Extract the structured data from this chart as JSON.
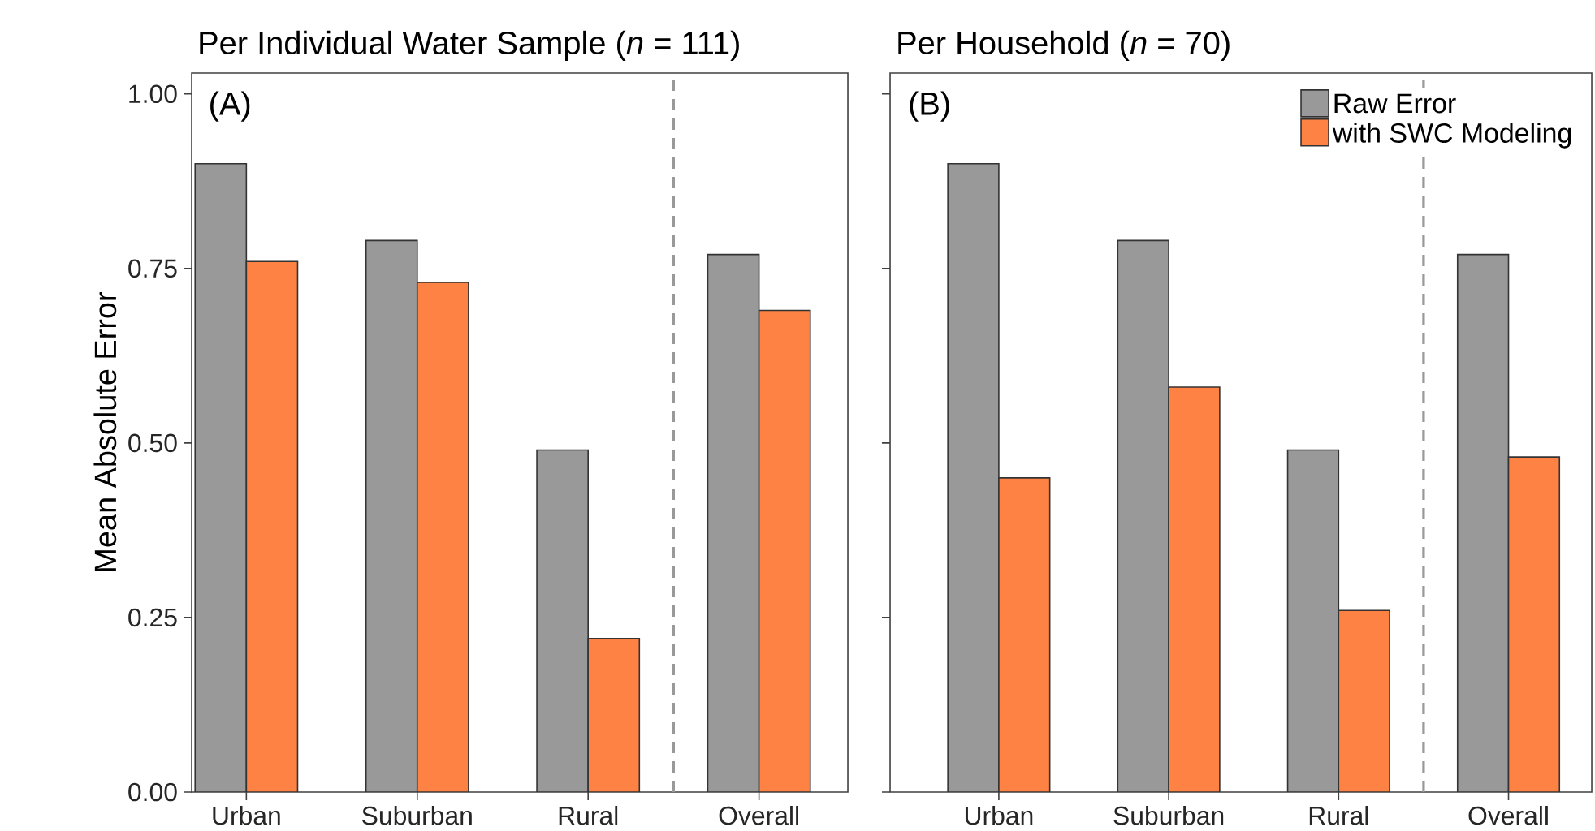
{
  "chart_data": [
    {
      "type": "bar",
      "title": "Per Individual Water Sample (*n* = 111)",
      "ylabel": "Mean Absolute Error",
      "categories": [
        "Urban",
        "Suburban",
        "Rural",
        "Overall"
      ],
      "series": [
        {
          "color": "#999999",
          "values": [
            0.9,
            0.79,
            0.49,
            0.77
          ]
        },
        {
          "color": "#fe8244",
          "values": [
            0.76,
            0.73,
            0.22,
            0.69
          ]
        }
      ],
      "ylim": [
        0,
        1.03
      ],
      "yticks": [
        {
          "value": 0,
          "label": "0.00"
        },
        {
          "value": 0.25,
          "label": "0.25"
        },
        {
          "value": 0.5,
          "label": "0.50"
        },
        {
          "value": 0.75,
          "label": "0.75"
        },
        {
          "value": 1,
          "label": "1.00"
        }
      ],
      "annotations": [
        "(A)"
      ],
      "legend": false
    },
    {
      "type": "bar",
      "title": "Per Household (*n* = 70)",
      "categories": [
        "Urban",
        "Suburban",
        "Rural",
        "Overall"
      ],
      "series": [
        {
          "name": "Raw Error",
          "color": "#999999",
          "values": [
            0.9,
            0.79,
            0.49,
            0.77
          ]
        },
        {
          "name": "with SWC Modeling",
          "color": "#fe8244",
          "values": [
            0.45,
            0.58,
            0.26,
            0.48
          ]
        }
      ],
      "ylim": [
        0,
        1.03
      ],
      "yticks": [
        {
          "value": 0,
          "label": null
        },
        {
          "value": 0.25,
          "label": null
        },
        {
          "value": 0.5,
          "label": null
        },
        {
          "value": 0.75,
          "label": null
        },
        {
          "value": 1,
          "label": null
        }
      ],
      "tick_labels": "x",
      "annotations": [
        "(B)"
      ],
      "legend": "top right"
    }
  ]
}
